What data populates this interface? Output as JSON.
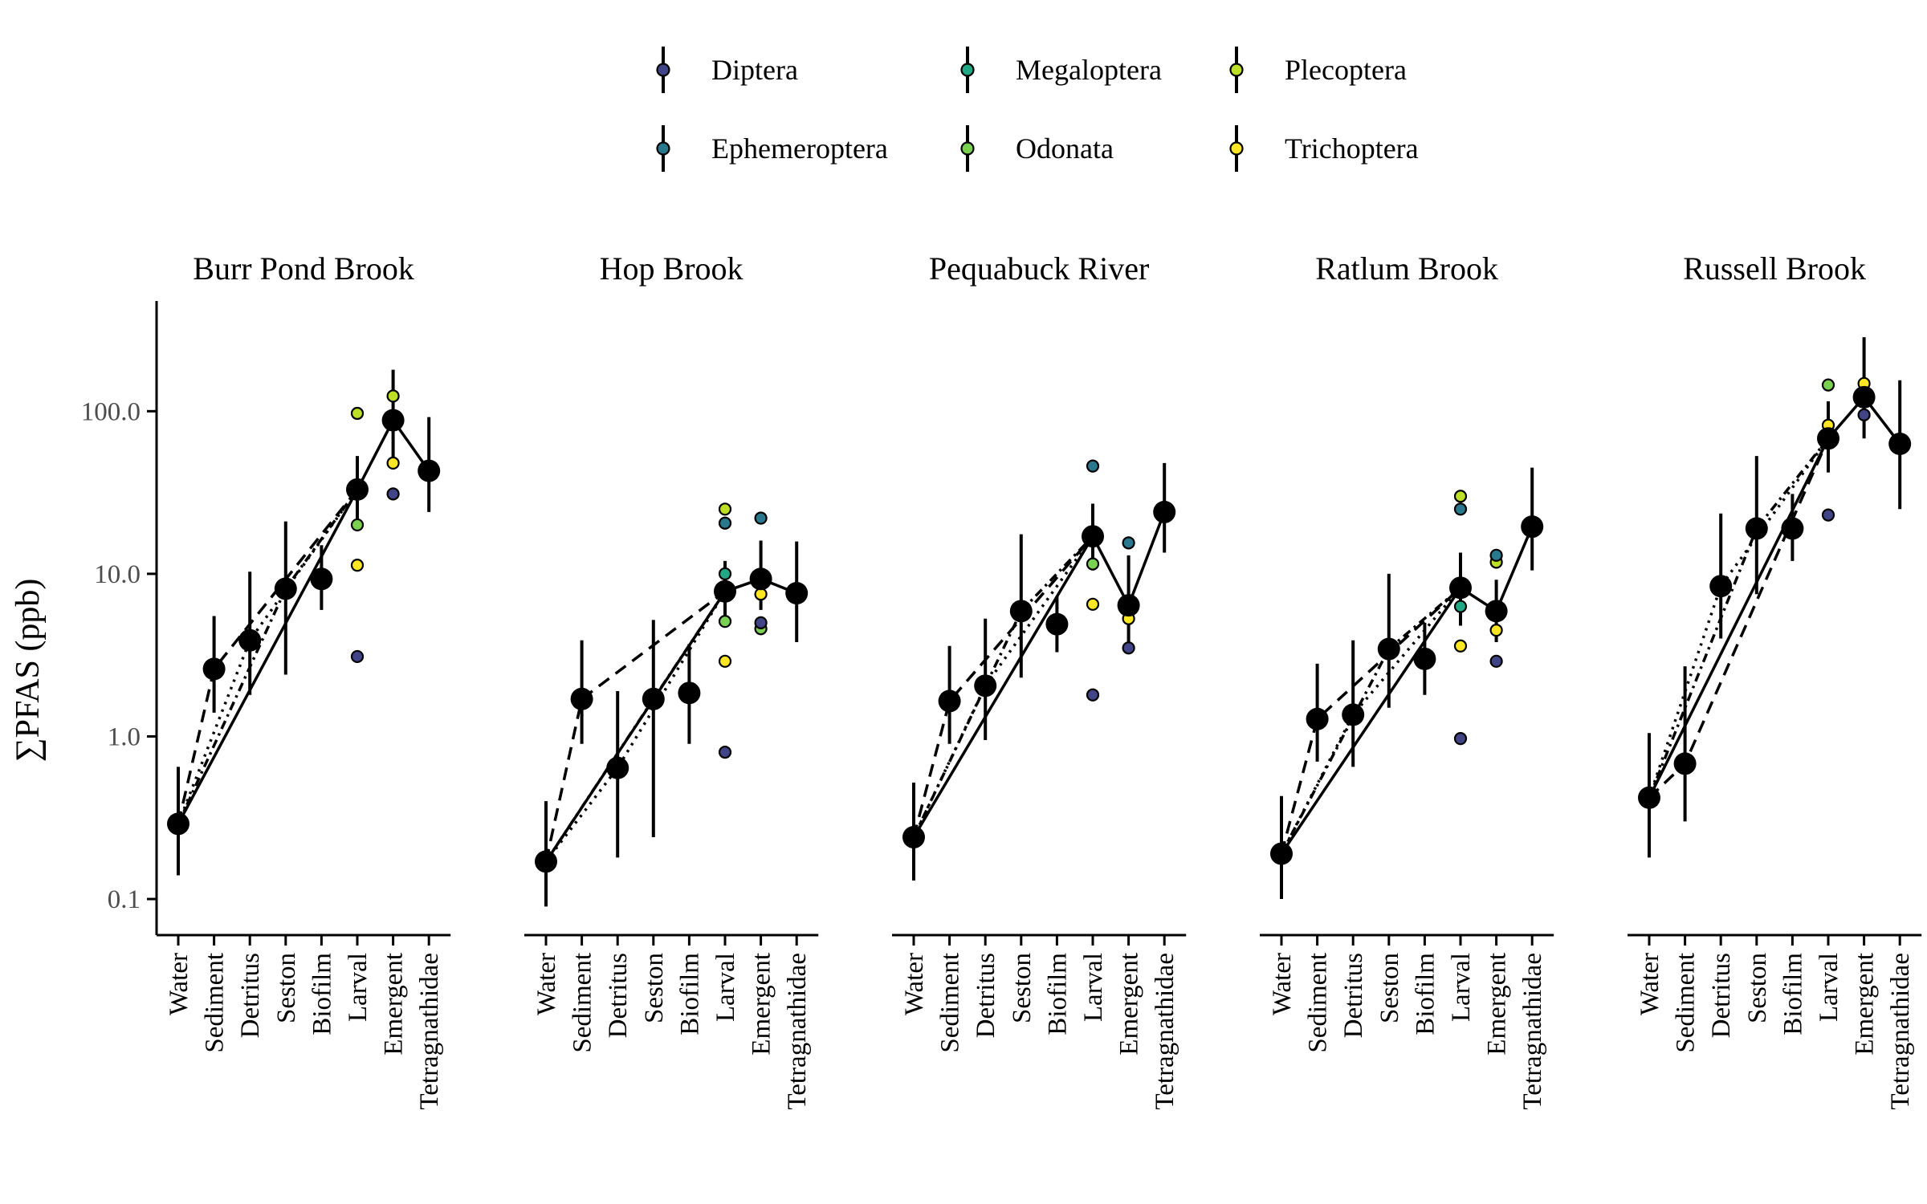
{
  "chart_data": {
    "type": "scatter",
    "ylabel": "∑PFAS (ppb)",
    "y_scale": "log10",
    "ylim": [
      0.06,
      450
    ],
    "yticks": [
      0.1,
      1.0,
      10.0,
      100.0
    ],
    "ytick_labels": [
      "0.1",
      "1.0",
      "10.0",
      "100.0"
    ],
    "categories": [
      "Water",
      "Sediment",
      "Detritus",
      "Seston",
      "Biofilm",
      "Larval",
      "Emergent",
      "Tetragnathidae"
    ],
    "legend_position": "top",
    "legend": [
      {
        "name": "Diptera",
        "color": "#414487"
      },
      {
        "name": "Ephemeroptera",
        "color": "#2a788e"
      },
      {
        "name": "Megaloptera",
        "color": "#22a884"
      },
      {
        "name": "Odonata",
        "color": "#7ad151"
      },
      {
        "name": "Plecoptera",
        "color": "#bddf26"
      },
      {
        "name": "Trichoptera",
        "color": "#fde725"
      }
    ],
    "panels": [
      {
        "title": "Burr Pond Brook",
        "means": [
          {
            "x": "Water",
            "y": 0.29,
            "lo": 0.14,
            "hi": 0.65
          },
          {
            "x": "Sediment",
            "y": 2.6,
            "lo": 1.4,
            "hi": 5.5
          },
          {
            "x": "Detritus",
            "y": 3.9,
            "lo": 1.8,
            "hi": 10.3
          },
          {
            "x": "Seston",
            "y": 8.1,
            "lo": 2.4,
            "hi": 21
          },
          {
            "x": "Biofilm",
            "y": 9.3,
            "lo": 6.0,
            "hi": 15
          },
          {
            "x": "Larval",
            "y": 33,
            "lo": 20,
            "hi": 53
          },
          {
            "x": "Emergent",
            "y": 88,
            "lo": 45,
            "hi": 180
          },
          {
            "x": "Tetragnathidae",
            "y": 43,
            "lo": 24,
            "hi": 92
          }
        ],
        "taxa": [
          {
            "x": "Larval",
            "taxon": "Diptera",
            "y": 3.1
          },
          {
            "x": "Larval",
            "taxon": "Odonata",
            "y": 20
          },
          {
            "x": "Larval",
            "taxon": "Trichoptera",
            "y": 11.3
          },
          {
            "x": "Larval",
            "taxon": "Plecoptera",
            "y": 97
          },
          {
            "x": "Emergent",
            "taxon": "Diptera",
            "y": 31
          },
          {
            "x": "Emergent",
            "taxon": "Trichoptera",
            "y": 48
          },
          {
            "x": "Emergent",
            "taxon": "Plecoptera",
            "y": 124
          }
        ],
        "lines": {
          "solid": [
            [
              0,
              0.29
            ],
            [
              5,
              33
            ],
            [
              6,
              88
            ],
            [
              7,
              43
            ]
          ],
          "dashed": [
            [
              0,
              0.29
            ],
            [
              1,
              2.6
            ],
            [
              5,
              33
            ]
          ],
          "dotdash": [
            [
              0,
              0.29
            ],
            [
              3,
              8.1
            ],
            [
              5,
              33
            ]
          ],
          "dotted": [
            [
              0,
              0.29
            ],
            [
              2,
              3.9
            ],
            [
              5,
              33
            ]
          ]
        }
      },
      {
        "title": "Hop Brook",
        "means": [
          {
            "x": "Water",
            "y": 0.17,
            "lo": 0.09,
            "hi": 0.4
          },
          {
            "x": "Sediment",
            "y": 1.7,
            "lo": 0.9,
            "hi": 3.9
          },
          {
            "x": "Detritus",
            "y": 0.64,
            "lo": 0.18,
            "hi": 1.9
          },
          {
            "x": "Seston",
            "y": 1.7,
            "lo": 0.24,
            "hi": 5.2
          },
          {
            "x": "Biofilm",
            "y": 1.85,
            "lo": 0.9,
            "hi": 3.7
          },
          {
            "x": "Larval",
            "y": 7.8,
            "lo": 5.0,
            "hi": 12
          },
          {
            "x": "Emergent",
            "y": 9.3,
            "lo": 6.0,
            "hi": 16
          },
          {
            "x": "Tetragnathidae",
            "y": 7.6,
            "lo": 3.8,
            "hi": 15.8
          }
        ],
        "taxa": [
          {
            "x": "Larval",
            "taxon": "Diptera",
            "y": 0.8
          },
          {
            "x": "Larval",
            "taxon": "Trichoptera",
            "y": 2.9
          },
          {
            "x": "Larval",
            "taxon": "Odonata",
            "y": 5.1
          },
          {
            "x": "Larval",
            "taxon": "Megaloptera",
            "y": 10
          },
          {
            "x": "Larval",
            "taxon": "Ephemeroptera",
            "y": 20.5
          },
          {
            "x": "Larval",
            "taxon": "Plecoptera",
            "y": 25
          },
          {
            "x": "Emergent",
            "taxon": "Odonata",
            "y": 4.6
          },
          {
            "x": "Emergent",
            "taxon": "Diptera",
            "y": 5.0
          },
          {
            "x": "Emergent",
            "taxon": "Trichoptera",
            "y": 7.5
          },
          {
            "x": "Emergent",
            "taxon": "Ephemeroptera",
            "y": 22
          }
        ],
        "lines": {
          "solid": [
            [
              0,
              0.17
            ],
            [
              5,
              7.8
            ],
            [
              6,
              9.3
            ],
            [
              7,
              7.6
            ]
          ],
          "dashed": [
            [
              0,
              0.17
            ],
            [
              1,
              1.7
            ],
            [
              5,
              7.8
            ]
          ],
          "dotdash": [
            [
              0,
              0.17
            ],
            [
              3,
              1.7
            ],
            [
              5,
              7.8
            ]
          ],
          "dotted": [
            [
              0,
              0.17
            ],
            [
              2,
              0.64
            ],
            [
              5,
              7.8
            ]
          ]
        }
      },
      {
        "title": "Pequabuck River",
        "means": [
          {
            "x": "Water",
            "y": 0.24,
            "lo": 0.13,
            "hi": 0.52
          },
          {
            "x": "Sediment",
            "y": 1.65,
            "lo": 0.9,
            "hi": 3.6
          },
          {
            "x": "Detritus",
            "y": 2.05,
            "lo": 0.95,
            "hi": 5.3
          },
          {
            "x": "Seston",
            "y": 5.9,
            "lo": 2.3,
            "hi": 17.5
          },
          {
            "x": "Biofilm",
            "y": 4.9,
            "lo": 3.3,
            "hi": 7.3
          },
          {
            "x": "Larval",
            "y": 17,
            "lo": 10.5,
            "hi": 27
          },
          {
            "x": "Emergent",
            "y": 6.4,
            "lo": 3.8,
            "hi": 13
          },
          {
            "x": "Tetragnathidae",
            "y": 24,
            "lo": 13.5,
            "hi": 48
          }
        ],
        "taxa": [
          {
            "x": "Larval",
            "taxon": "Diptera",
            "y": 1.8
          },
          {
            "x": "Larval",
            "taxon": "Trichoptera",
            "y": 6.5
          },
          {
            "x": "Larval",
            "taxon": "Odonata",
            "y": 11.5
          },
          {
            "x": "Larval",
            "taxon": "Ephemeroptera",
            "y": 46
          },
          {
            "x": "Emergent",
            "taxon": "Diptera",
            "y": 3.5
          },
          {
            "x": "Emergent",
            "taxon": "Trichoptera",
            "y": 5.3
          },
          {
            "x": "Emergent",
            "taxon": "Ephemeroptera",
            "y": 15.5
          }
        ],
        "lines": {
          "solid": [
            [
              0,
              0.24
            ],
            [
              5,
              17
            ],
            [
              6,
              6.4
            ],
            [
              7,
              24
            ]
          ],
          "dashed": [
            [
              0,
              0.24
            ],
            [
              1,
              1.65
            ],
            [
              5,
              17
            ]
          ],
          "dotdash": [
            [
              0,
              0.24
            ],
            [
              3,
              5.9
            ],
            [
              5,
              17
            ]
          ],
          "dotted": [
            [
              0,
              0.24
            ],
            [
              2,
              2.05
            ],
            [
              5,
              17
            ]
          ]
        }
      },
      {
        "title": "Ratlum Brook",
        "means": [
          {
            "x": "Water",
            "y": 0.19,
            "lo": 0.1,
            "hi": 0.43
          },
          {
            "x": "Sediment",
            "y": 1.28,
            "lo": 0.7,
            "hi": 2.8
          },
          {
            "x": "Detritus",
            "y": 1.36,
            "lo": 0.65,
            "hi": 3.9
          },
          {
            "x": "Seston",
            "y": 3.45,
            "lo": 1.5,
            "hi": 10
          },
          {
            "x": "Biofilm",
            "y": 3.0,
            "lo": 1.8,
            "hi": 5.0
          },
          {
            "x": "Larval",
            "y": 8.2,
            "lo": 4.8,
            "hi": 13.5
          },
          {
            "x": "Emergent",
            "y": 5.9,
            "lo": 3.8,
            "hi": 9.2
          },
          {
            "x": "Tetragnathidae",
            "y": 19.5,
            "lo": 10.5,
            "hi": 45
          }
        ],
        "taxa": [
          {
            "x": "Larval",
            "taxon": "Diptera",
            "y": 0.97
          },
          {
            "x": "Larval",
            "taxon": "Trichoptera",
            "y": 3.6
          },
          {
            "x": "Larval",
            "taxon": "Megaloptera",
            "y": 6.3
          },
          {
            "x": "Larval",
            "taxon": "Ephemeroptera",
            "y": 25
          },
          {
            "x": "Larval",
            "taxon": "Plecoptera",
            "y": 30
          },
          {
            "x": "Emergent",
            "taxon": "Diptera",
            "y": 2.9
          },
          {
            "x": "Emergent",
            "taxon": "Trichoptera",
            "y": 4.5
          },
          {
            "x": "Emergent",
            "taxon": "Plecoptera",
            "y": 11.8
          },
          {
            "x": "Emergent",
            "taxon": "Ephemeroptera",
            "y": 13
          }
        ],
        "lines": {
          "solid": [
            [
              0,
              0.19
            ],
            [
              5,
              8.2
            ],
            [
              6,
              5.9
            ],
            [
              7,
              19.5
            ]
          ],
          "dashed": [
            [
              0,
              0.19
            ],
            [
              1,
              1.28
            ],
            [
              5,
              8.2
            ]
          ],
          "dotdash": [
            [
              0,
              0.19
            ],
            [
              3,
              3.45
            ],
            [
              5,
              8.2
            ]
          ],
          "dotted": [
            [
              0,
              0.19
            ],
            [
              2,
              1.36
            ],
            [
              5,
              8.2
            ]
          ]
        }
      },
      {
        "title": "Russell Brook",
        "means": [
          {
            "x": "Water",
            "y": 0.42,
            "lo": 0.18,
            "hi": 1.05
          },
          {
            "x": "Sediment",
            "y": 0.68,
            "lo": 0.3,
            "hi": 2.7
          },
          {
            "x": "Detritus",
            "y": 8.4,
            "lo": 4.0,
            "hi": 23.5
          },
          {
            "x": "Seston",
            "y": 19,
            "lo": 7.5,
            "hi": 53
          },
          {
            "x": "Biofilm",
            "y": 19,
            "lo": 12,
            "hi": 31
          },
          {
            "x": "Larval",
            "y": 68,
            "lo": 42,
            "hi": 115
          },
          {
            "x": "Emergent",
            "y": 122,
            "lo": 68,
            "hi": 285
          },
          {
            "x": "Tetragnathidae",
            "y": 63,
            "lo": 25,
            "hi": 155
          }
        ],
        "taxa": [
          {
            "x": "Larval",
            "taxon": "Diptera",
            "y": 23
          },
          {
            "x": "Larval",
            "taxon": "Odonata",
            "y": 145
          },
          {
            "x": "Larval",
            "taxon": "Trichoptera",
            "y": 82
          },
          {
            "x": "Emergent",
            "taxon": "Diptera",
            "y": 95
          },
          {
            "x": "Emergent",
            "taxon": "Trichoptera",
            "y": 148
          }
        ],
        "lines": {
          "solid": [
            [
              0,
              0.42
            ],
            [
              5,
              68
            ],
            [
              6,
              122
            ],
            [
              7,
              63
            ]
          ],
          "dashed": [
            [
              0,
              0.42
            ],
            [
              1,
              0.68
            ],
            [
              5,
              68
            ]
          ],
          "dotdash": [
            [
              0,
              0.42
            ],
            [
              3,
              19
            ],
            [
              5,
              68
            ]
          ],
          "dotted": [
            [
              0,
              0.42
            ],
            [
              2,
              8.4
            ],
            [
              5,
              68
            ]
          ]
        }
      }
    ]
  }
}
